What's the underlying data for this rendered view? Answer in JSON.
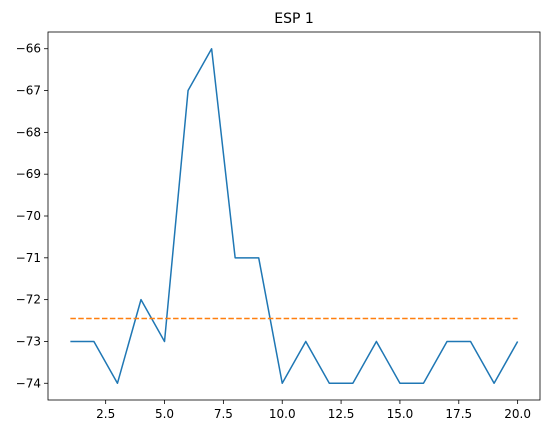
{
  "chart_data": {
    "type": "line",
    "title": "ESP 1",
    "xlabel": "",
    "ylabel": "",
    "xlim": [
      0.05,
      20.95
    ],
    "ylim": [
      -74.4,
      -65.6
    ],
    "xticks": [
      2.5,
      5.0,
      7.5,
      10.0,
      12.5,
      15.0,
      17.5,
      20.0
    ],
    "xtick_labels": [
      "2.5",
      "5.0",
      "7.5",
      "10.0",
      "12.5",
      "15.0",
      "17.5",
      "20.0"
    ],
    "yticks": [
      -74,
      -73,
      -72,
      -71,
      -70,
      -69,
      -68,
      -67,
      -66
    ],
    "ytick_labels": [
      "−74",
      "−73",
      "−72",
      "−71",
      "−70",
      "−69",
      "−68",
      "−67",
      "−66"
    ],
    "grid": false,
    "series": [
      {
        "color": "#1f77b4",
        "style": "solid",
        "x": [
          1,
          2,
          3,
          4,
          5,
          6,
          7,
          8,
          9,
          10,
          11,
          12,
          13,
          14,
          15,
          16,
          17,
          18,
          19,
          20
        ],
        "y": [
          -73,
          -73,
          -74,
          -72,
          -73,
          -67,
          -66,
          -71,
          -71,
          -74,
          -73,
          -74,
          -74,
          -73,
          -74,
          -74,
          -73,
          -73,
          -74,
          -73
        ]
      },
      {
        "color": "#ff7f0e",
        "style": "dashed",
        "x": [
          1,
          20
        ],
        "y": [
          -72.45,
          -72.45
        ]
      }
    ]
  }
}
